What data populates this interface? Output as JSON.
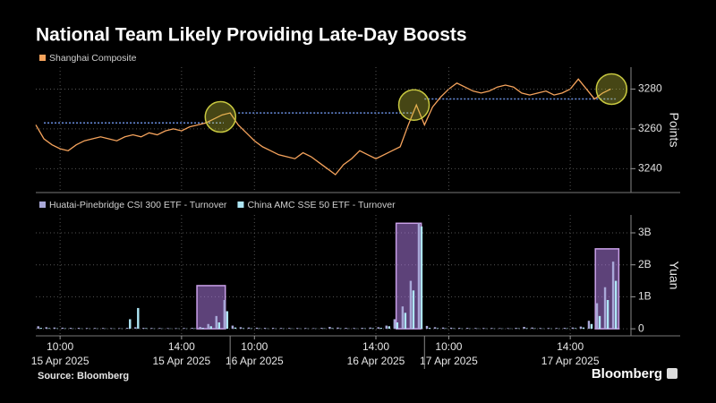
{
  "chart_data": [
    {
      "type": "line",
      "title": "National Team Likely Providing Late-Day Boosts",
      "series": [
        {
          "name": "Shanghai Composite",
          "color": "#f5a35c",
          "values": [
            3262,
            3255,
            3252,
            3250,
            3249,
            3252,
            3254,
            3255,
            3256,
            3255,
            3254,
            3256,
            3257,
            3256,
            3258,
            3257,
            3259,
            3260,
            3259,
            3261,
            3262,
            3263,
            3265,
            3267,
            3268,
            3262,
            3258,
            3254,
            3251,
            3249,
            3247,
            3246,
            3245,
            3248,
            3246,
            3243,
            3240,
            3237,
            3242,
            3245,
            3249,
            3247,
            3245,
            3247,
            3249,
            3251,
            3262,
            3272,
            3262,
            3271,
            3276,
            3280,
            3283,
            3281,
            3279,
            3278,
            3279,
            3281,
            3282,
            3281,
            3278,
            3277,
            3278,
            3279,
            3277,
            3278,
            3280,
            3285,
            3280,
            3275,
            3278,
            3280
          ]
        }
      ],
      "x": [
        0,
        10,
        20,
        30,
        40,
        50,
        60,
        70,
        80,
        90,
        100,
        110,
        120,
        130,
        140,
        150,
        160,
        170,
        180,
        190,
        200,
        210,
        220,
        230,
        240,
        250,
        260,
        270,
        280,
        290,
        300,
        310,
        320,
        330,
        340,
        350,
        360,
        370,
        380,
        390,
        400,
        410,
        420,
        430,
        440,
        450,
        460,
        470,
        480,
        490,
        500,
        510,
        520,
        530,
        540,
        550,
        560,
        570,
        580,
        590,
        600,
        610,
        620,
        630,
        640,
        650,
        660,
        670,
        680,
        690,
        700,
        710
      ],
      "xlim": [
        0,
        735
      ],
      "ylim": [
        3228,
        3291
      ],
      "yticks": [
        3240,
        3260,
        3280
      ],
      "y_label": "Points",
      "reference_lines": [
        {
          "value": 3263,
          "x": [
            10,
            232
          ]
        },
        {
          "value": 3268,
          "x": [
            250,
            466
          ]
        },
        {
          "value": 3275,
          "x": [
            480,
            716
          ]
        }
      ],
      "highlights": [
        {
          "x": 228,
          "y": 3266
        },
        {
          "x": 467,
          "y": 3272
        },
        {
          "x": 711,
          "y": 3280
        }
      ]
    },
    {
      "type": "bar",
      "series": [
        {
          "name": "Huatai-Pinebridge CSI 300 ETF - Turnover",
          "color": "#a9a8d8",
          "values": [
            80000000,
            50000000,
            40000000,
            35000000,
            30000000,
            30000000,
            25000000,
            25000000,
            25000000,
            20000000,
            20000000,
            30000000,
            50000000,
            30000000,
            25000000,
            25000000,
            20000000,
            20000000,
            25000000,
            30000000,
            60000000,
            150000000,
            400000000,
            900000000,
            100000000,
            50000000,
            40000000,
            35000000,
            30000000,
            30000000,
            25000000,
            25000000,
            25000000,
            25000000,
            20000000,
            30000000,
            60000000,
            40000000,
            30000000,
            25000000,
            30000000,
            40000000,
            50000000,
            100000000,
            300000000,
            700000000,
            1500000000,
            3300000000,
            90000000,
            50000000,
            40000000,
            35000000,
            30000000,
            30000000,
            25000000,
            25000000,
            25000000,
            20000000,
            20000000,
            30000000,
            60000000,
            40000000,
            25000000,
            25000000,
            25000000,
            30000000,
            40000000,
            70000000,
            250000000,
            800000000,
            1300000000,
            2100000000
          ]
        },
        {
          "name": "China AMC SSE 50 ETF - Turnover",
          "color": "#aee6f5",
          "values": [
            30000000,
            20000000,
            15000000,
            15000000,
            10000000,
            10000000,
            10000000,
            10000000,
            10000000,
            10000000,
            10000000,
            300000000,
            650000000,
            20000000,
            10000000,
            10000000,
            10000000,
            10000000,
            10000000,
            15000000,
            30000000,
            80000000,
            200000000,
            550000000,
            40000000,
            20000000,
            15000000,
            15000000,
            10000000,
            10000000,
            10000000,
            10000000,
            10000000,
            10000000,
            10000000,
            15000000,
            20000000,
            15000000,
            10000000,
            10000000,
            15000000,
            20000000,
            30000000,
            80000000,
            200000000,
            500000000,
            1200000000,
            3200000000,
            30000000,
            20000000,
            15000000,
            15000000,
            10000000,
            10000000,
            10000000,
            10000000,
            10000000,
            10000000,
            10000000,
            15000000,
            20000000,
            15000000,
            10000000,
            10000000,
            10000000,
            15000000,
            20000000,
            40000000,
            150000000,
            400000000,
            900000000,
            1500000000
          ]
        }
      ],
      "x": [
        0,
        10,
        20,
        30,
        40,
        50,
        60,
        70,
        80,
        90,
        100,
        110,
        120,
        130,
        140,
        150,
        160,
        170,
        180,
        190,
        200,
        210,
        220,
        230,
        240,
        250,
        260,
        270,
        280,
        290,
        300,
        310,
        320,
        330,
        340,
        350,
        360,
        370,
        380,
        390,
        400,
        410,
        420,
        430,
        440,
        450,
        460,
        470,
        480,
        490,
        500,
        510,
        520,
        530,
        540,
        550,
        560,
        570,
        580,
        590,
        600,
        610,
        620,
        630,
        640,
        650,
        660,
        670,
        680,
        690,
        700,
        710
      ],
      "xlim": [
        0,
        735
      ],
      "ylim": [
        -220000000,
        3560000000
      ],
      "yticks": [
        0,
        {
          "value": 1000000000,
          "label": "1B"
        },
        {
          "value": 2000000000,
          "label": "2B"
        },
        {
          "value": 3000000000,
          "label": "3B"
        }
      ],
      "y_label": "Yuan",
      "highlight_boxes": [
        {
          "x": [
            199,
            234
          ],
          "value": 1350000000
        },
        {
          "x": [
            445,
            476
          ],
          "value": 3300000000
        },
        {
          "x": [
            691,
            720
          ],
          "value": 2500000000
        }
      ],
      "xticks": [
        {
          "value": 30,
          "label": "10:00"
        },
        {
          "value": 180,
          "label": "14:00"
        },
        {
          "value": 270,
          "label": "10:00"
        },
        {
          "value": 420,
          "label": "14:00"
        },
        {
          "value": 510,
          "label": "10:00"
        },
        {
          "value": 660,
          "label": "14:00"
        }
      ],
      "xtick_dates": [
        "15 Apr 2025",
        "15 Apr 2025",
        "16 Apr 2025",
        "16 Apr 2025",
        "17 Apr 2025",
        "17 Apr 2025"
      ],
      "xbreaks": [
        240,
        480
      ]
    }
  ],
  "source": "Source: Bloomberg",
  "brand": "Bloomberg"
}
